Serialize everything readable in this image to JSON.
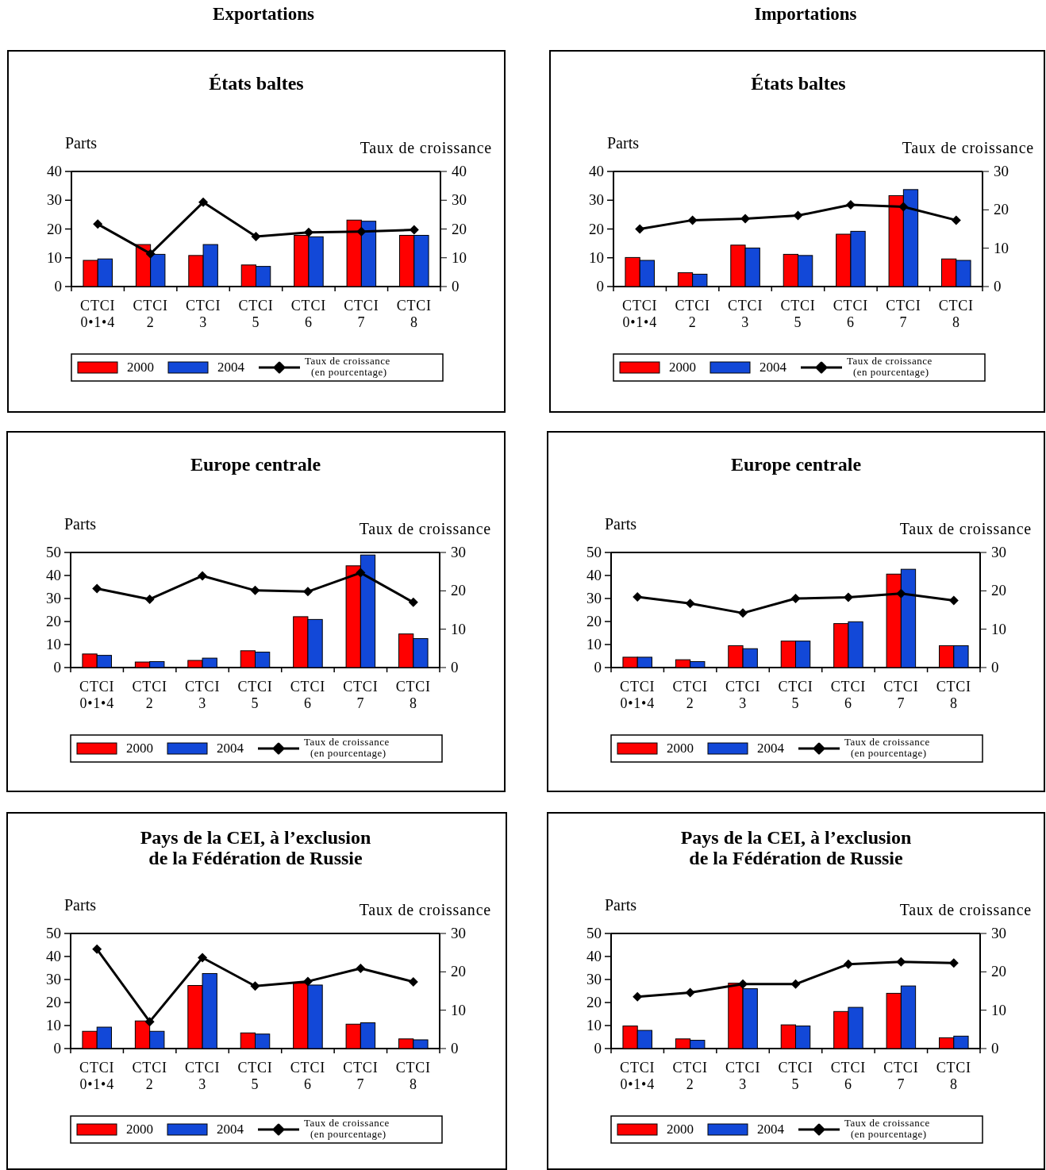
{
  "chart_data": [
    {
      "type": "bar",
      "title": "États baltes",
      "annotations": [
        "Exportations"
      ],
      "ylabel": "Parts",
      "y2label": "Taux de croissance",
      "categories": [
        "CTCI 0•1•4",
        "CTCI 2",
        "CTCI 3",
        "CTCI 5",
        "CTCI 6",
        "CTCI 7",
        "CTCI 8"
      ],
      "ylim": [
        0,
        40
      ],
      "yticks": [
        0,
        10,
        20,
        30,
        40
      ],
      "y2lim": [
        0,
        40
      ],
      "y2ticks": [
        0,
        10,
        20,
        30,
        40
      ],
      "legend": "bottom",
      "marker": "diamond",
      "series": [
        {
          "name": "2000",
          "color": "#ff0000",
          "values": [
            9.1,
            14.6,
            10.8,
            7.5,
            17.8,
            23.1,
            17.8
          ]
        },
        {
          "name": "2004",
          "color": "#1248d8",
          "values": [
            9.6,
            11.2,
            14.6,
            7.0,
            17.3,
            22.7,
            17.8
          ]
        },
        {
          "name": "Taux de croissance (en pourcentage)",
          "type": "line",
          "axis": "y2",
          "color": "#000000",
          "values": [
            21.7,
            11.4,
            29.3,
            17.4,
            18.8,
            19.1,
            19.7
          ]
        }
      ]
    },
    {
      "type": "bar",
      "title": "États baltes",
      "annotations": [
        "Importations"
      ],
      "ylabel": "Parts",
      "y2label": "Taux de croissance",
      "categories": [
        "CTCI 0•1•4",
        "CTCI 2",
        "CTCI 3",
        "CTCI 5",
        "CTCI 6",
        "CTCI 7",
        "CTCI 8"
      ],
      "ylim": [
        0,
        40
      ],
      "yticks": [
        0,
        10,
        20,
        30,
        40
      ],
      "y2lim": [
        0,
        30
      ],
      "y2ticks": [
        0,
        10,
        20,
        30
      ],
      "legend": "bottom",
      "marker": "diamond",
      "series": [
        {
          "name": "2000",
          "color": "#ff0000",
          "values": [
            10.1,
            4.8,
            14.4,
            11.2,
            18.2,
            31.6,
            9.6
          ]
        },
        {
          "name": "2004",
          "color": "#1248d8",
          "values": [
            9.1,
            4.3,
            13.4,
            10.8,
            19.2,
            33.7,
            9.1
          ]
        },
        {
          "name": "Taux de croissance (en pourcentage)",
          "type": "line",
          "axis": "y2",
          "color": "#000000",
          "values": [
            15.0,
            17.3,
            17.7,
            18.5,
            21.3,
            20.8,
            17.3
          ]
        }
      ]
    },
    {
      "type": "bar",
      "title": "Europe centrale",
      "ylabel": "Parts",
      "y2label": "Taux de croissance",
      "categories": [
        "CTCI 0•1•4",
        "CTCI 2",
        "CTCI 3",
        "CTCI 5",
        "CTCI 6",
        "CTCI 7",
        "CTCI 8"
      ],
      "ylim": [
        0,
        50
      ],
      "yticks": [
        0,
        10,
        20,
        30,
        40,
        50
      ],
      "y2lim": [
        0,
        30
      ],
      "y2ticks": [
        0,
        10,
        20,
        30
      ],
      "legend": "bottom",
      "marker": "diamond",
      "series": [
        {
          "name": "2000",
          "color": "#ff0000",
          "values": [
            5.9,
            2.4,
            3.1,
            7.3,
            22.1,
            44.2,
            14.6
          ]
        },
        {
          "name": "2004",
          "color": "#1248d8",
          "values": [
            5.3,
            2.6,
            4.1,
            6.7,
            20.9,
            48.9,
            12.6
          ]
        },
        {
          "name": "Taux de croissance (en pourcentage)",
          "type": "line",
          "axis": "y2",
          "color": "#000000",
          "values": [
            20.6,
            17.8,
            23.9,
            20.1,
            19.8,
            24.7,
            17.0
          ]
        }
      ]
    },
    {
      "type": "bar",
      "title": "Europe centrale",
      "ylabel": "Parts",
      "y2label": "Taux de croissance",
      "categories": [
        "CTCI 0•1•4",
        "CTCI 2",
        "CTCI 3",
        "CTCI 5",
        "CTCI 6",
        "CTCI 7",
        "CTCI 8"
      ],
      "ylim": [
        0,
        50
      ],
      "yticks": [
        0,
        10,
        20,
        30,
        40,
        50
      ],
      "y2lim": [
        0,
        30
      ],
      "y2ticks": [
        0,
        10,
        20,
        30
      ],
      "legend": "bottom",
      "marker": "diamond",
      "series": [
        {
          "name": "2000",
          "color": "#ff0000",
          "values": [
            4.5,
            3.4,
            9.5,
            11.5,
            19.1,
            40.6,
            9.5
          ]
        },
        {
          "name": "2004",
          "color": "#1248d8",
          "values": [
            4.5,
            2.6,
            8.2,
            11.5,
            19.9,
            42.7,
            9.5
          ]
        },
        {
          "name": "Taux de croissance (en pourcentage)",
          "type": "line",
          "axis": "y2",
          "color": "#000000",
          "values": [
            18.4,
            16.7,
            14.2,
            18.0,
            18.3,
            19.3,
            17.5
          ]
        }
      ]
    },
    {
      "type": "bar",
      "title": "Pays de la CEI, à l’exclusion de la Fédération de Russie",
      "ylabel": "Parts",
      "y2label": "Taux de croissance",
      "categories": [
        "CTCI 0•1•4",
        "CTCI 2",
        "CTCI 3",
        "CTCI 5",
        "CTCI 6",
        "CTCI 7",
        "CTCI 8"
      ],
      "ylim": [
        0,
        50
      ],
      "yticks": [
        0,
        10,
        20,
        30,
        40,
        50
      ],
      "y2lim": [
        0,
        30
      ],
      "y2ticks": [
        0,
        10,
        20,
        30
      ],
      "legend": "bottom",
      "marker": "diamond",
      "series": [
        {
          "name": "2000",
          "color": "#ff0000",
          "values": [
            7.5,
            12.0,
            27.4,
            6.8,
            28.4,
            10.6,
            4.2
          ]
        },
        {
          "name": "2004",
          "color": "#1248d8",
          "values": [
            9.3,
            7.5,
            32.6,
            6.3,
            27.6,
            11.2,
            3.8
          ]
        },
        {
          "name": "Taux de croissance (en pourcentage)",
          "type": "line",
          "axis": "y2",
          "color": "#000000",
          "values": [
            25.9,
            7.0,
            23.7,
            16.3,
            17.5,
            20.9,
            17.4
          ]
        }
      ]
    },
    {
      "type": "bar",
      "title": "Pays de la CEI, à l’exclusion de la Fédération de Russie",
      "ylabel": "Parts",
      "y2label": "Taux de croissance",
      "categories": [
        "CTCI 0•1•4",
        "CTCI 2",
        "CTCI 3",
        "CTCI 5",
        "CTCI 6",
        "CTCI 7",
        "CTCI 8"
      ],
      "ylim": [
        0,
        50
      ],
      "yticks": [
        0,
        10,
        20,
        30,
        40,
        50
      ],
      "y2lim": [
        0,
        30
      ],
      "y2ticks": [
        0,
        10,
        20,
        30
      ],
      "legend": "bottom",
      "marker": "diamond",
      "series": [
        {
          "name": "2000",
          "color": "#ff0000",
          "values": [
            9.8,
            4.2,
            28.4,
            10.3,
            16.1,
            24.0,
            4.7
          ]
        },
        {
          "name": "2004",
          "color": "#1248d8",
          "values": [
            7.9,
            3.6,
            26.0,
            9.8,
            17.9,
            27.2,
            5.4
          ]
        },
        {
          "name": "Taux de croissance (en pourcentage)",
          "type": "line",
          "axis": "y2",
          "color": "#000000",
          "values": [
            13.5,
            14.6,
            16.8,
            16.8,
            22.0,
            22.6,
            22.3
          ]
        }
      ]
    }
  ]
}
